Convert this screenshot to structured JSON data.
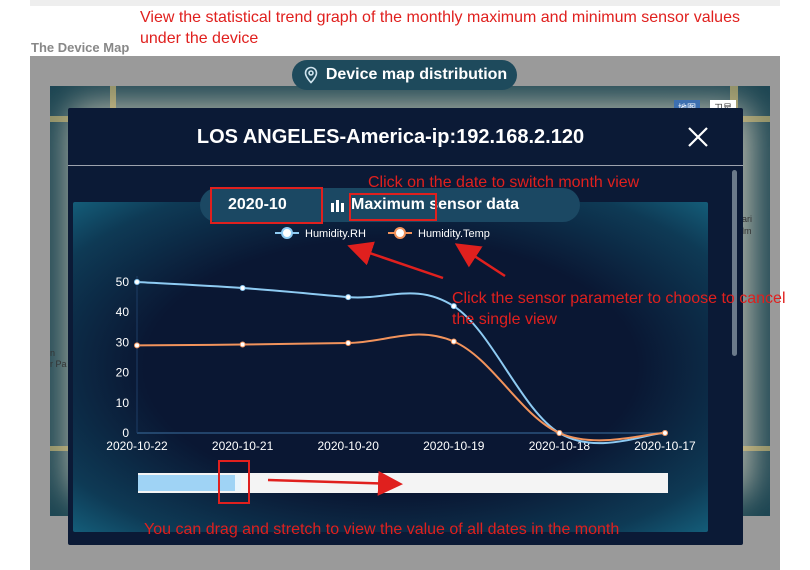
{
  "annotations": {
    "top_line1": "View the statistical trend graph of the monthly maximum and minimum sensor values",
    "top_line2": "under the device",
    "date": "Click on the date to switch month view",
    "sensor_line1": "Click the sensor parameter to choose to cancel",
    "sensor_line2": "the single view",
    "drag": "You can drag and stretch to view the value of all dates in the month"
  },
  "page": {
    "section_title": "The Device Map"
  },
  "map": {
    "title": "Device map distribution",
    "ctrl_map": "地图",
    "ctrl_satellite": "卫星",
    "labels": [
      "ari",
      "lm",
      "n",
      "r Pa"
    ]
  },
  "modal": {
    "title": "LOS ANGELES-America-ip:192.168.2.120",
    "date": "2020-10",
    "mode_highlight": "Maximum",
    "mode_rest": " sensor data"
  },
  "colors": {
    "rh": "#8ecbf3",
    "temp": "#f2935c",
    "annotation": "#e0201e",
    "modal_bg": "#0b1a36"
  },
  "chart_data": {
    "type": "line",
    "categories": [
      "2020-10-22",
      "2020-10-21",
      "2020-10-20",
      "2020-10-19",
      "2020-10-18",
      "2020-10-17"
    ],
    "series": [
      {
        "name": "Humidity.RH",
        "values": [
          50,
          48,
          45,
          42,
          0,
          0
        ]
      },
      {
        "name": "Humidity.Temp",
        "values": [
          29,
          29.3,
          29.8,
          30.3,
          0,
          0
        ]
      }
    ],
    "ylim": [
      0,
      50
    ],
    "yticks": [
      0,
      10,
      20,
      30,
      40,
      50
    ],
    "legend": "top-center",
    "grid": false
  },
  "zoom": {
    "start": 0,
    "end": 0.19
  }
}
